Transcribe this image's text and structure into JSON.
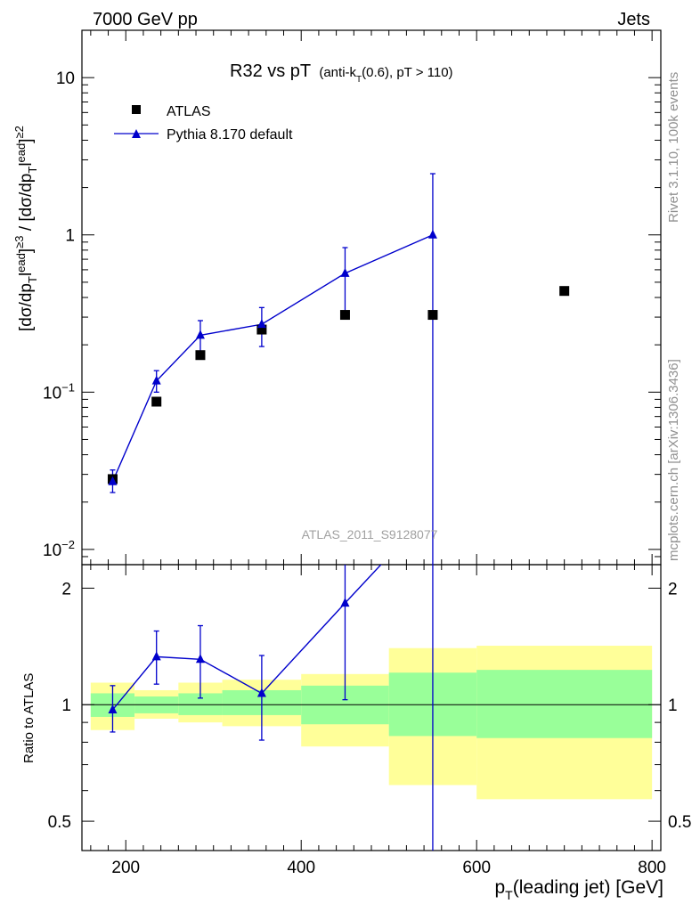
{
  "header": {
    "left": "7000 GeV pp",
    "right": "Jets"
  },
  "title": {
    "main": "R32 vs pT",
    "sub_prefix": "(anti-k",
    "sub_subscript": "T",
    "sub_suffix": "(0.6), pT > 110)"
  },
  "side_labels": {
    "rivet": "Rivet 3.1.10,  100k events",
    "mcplots": "mcplots.cern.ch [arXiv:1306.3436]"
  },
  "watermark": "ATLAS_2011_S9128077",
  "colors": {
    "data": "#000000",
    "mc": "#0000cc",
    "band_inner": "#99ff99",
    "band_outer": "#ffff99"
  },
  "chart_data": {
    "type": "scatter",
    "title": "R32 vs pT (anti-kT(0.6), pT > 110)",
    "xlabel": "p_T(leading jet) [GeV]",
    "ylabel": "[dσ/dp_Tlead]≥3 / [dσ/dp_Tlead]≥2",
    "ratio_ylabel": "Ratio to ATLAS",
    "x_scale": "linear",
    "y_scale": "log",
    "xlim": [
      150,
      810
    ],
    "ylim": [
      0.008,
      20
    ],
    "ratio_ylim": [
      0.42,
      2.3
    ],
    "ratio_y_scale": "log",
    "x_ticks": [
      200,
      400,
      600,
      800
    ],
    "y_ticks": [
      {
        "value": 0.01,
        "base": "10",
        "exp": "−2"
      },
      {
        "value": 0.1,
        "base": "10",
        "exp": "−1"
      },
      {
        "value": 1,
        "base": "1",
        "exp": ""
      },
      {
        "value": 10,
        "base": "10",
        "exp": ""
      }
    ],
    "ratio_ticks": [
      {
        "value": 0.5,
        "label": "0.5"
      },
      {
        "value": 1,
        "label": "1"
      },
      {
        "value": 2,
        "label": "2"
      }
    ],
    "legend": [
      "ATLAS",
      "Pythia 8.170 default"
    ],
    "legend_position": "top-left",
    "series": [
      {
        "name": "ATLAS",
        "marker": "square",
        "points": [
          {
            "x": 185,
            "y": 0.028
          },
          {
            "x": 235,
            "y": 0.087
          },
          {
            "x": 285,
            "y": 0.172
          },
          {
            "x": 355,
            "y": 0.25
          },
          {
            "x": 450,
            "y": 0.31
          },
          {
            "x": 550,
            "y": 0.31
          },
          {
            "x": 700,
            "y": 0.44
          }
        ]
      },
      {
        "name": "Pythia 8.170 default",
        "marker": "triangle",
        "points": [
          {
            "x": 185,
            "y": 0.027,
            "lo": 0.023,
            "hi": 0.032
          },
          {
            "x": 235,
            "y": 0.118,
            "lo": 0.1,
            "hi": 0.137
          },
          {
            "x": 285,
            "y": 0.23,
            "lo": 0.18,
            "hi": 0.285
          },
          {
            "x": 355,
            "y": 0.27,
            "lo": 0.195,
            "hi": 0.345
          },
          {
            "x": 450,
            "y": 0.57,
            "lo": 0.31,
            "hi": 0.83
          },
          {
            "x": 550,
            "y": 1.0,
            "lo": 0.004,
            "hi": 2.45
          }
        ]
      }
    ],
    "ratio_series": {
      "name": "Pythia 8.170 default",
      "points": [
        {
          "x": 185,
          "y": 0.97,
          "lo": 0.85,
          "hi": 1.12
        },
        {
          "x": 235,
          "y": 1.33,
          "lo": 1.13,
          "hi": 1.55
        },
        {
          "x": 285,
          "y": 1.31,
          "lo": 1.04,
          "hi": 1.6
        },
        {
          "x": 355,
          "y": 1.07,
          "lo": 0.81,
          "hi": 1.34
        },
        {
          "x": 450,
          "y": 1.83,
          "lo": 1.03,
          "hi": 3.0
        },
        {
          "x": 550,
          "y": 3.2,
          "lo": 0.3,
          "hi": 8.0
        }
      ]
    },
    "uncertainty_bands": [
      {
        "x0": 160,
        "x1": 210,
        "inner_lo": 0.93,
        "inner_hi": 1.07,
        "outer_lo": 0.86,
        "outer_hi": 1.14
      },
      {
        "x0": 210,
        "x1": 260,
        "inner_lo": 0.95,
        "inner_hi": 1.05,
        "outer_lo": 0.92,
        "outer_hi": 1.09
      },
      {
        "x0": 260,
        "x1": 310,
        "inner_lo": 0.94,
        "inner_hi": 1.07,
        "outer_lo": 0.9,
        "outer_hi": 1.14
      },
      {
        "x0": 310,
        "x1": 400,
        "inner_lo": 0.94,
        "inner_hi": 1.09,
        "outer_lo": 0.88,
        "outer_hi": 1.16
      },
      {
        "x0": 400,
        "x1": 500,
        "inner_lo": 0.89,
        "inner_hi": 1.12,
        "outer_lo": 0.78,
        "outer_hi": 1.2
      },
      {
        "x0": 500,
        "x1": 600,
        "inner_lo": 0.83,
        "inner_hi": 1.21,
        "outer_lo": 0.62,
        "outer_hi": 1.4
      },
      {
        "x0": 600,
        "x1": 800,
        "inner_lo": 0.82,
        "inner_hi": 1.23,
        "outer_lo": 0.57,
        "outer_hi": 1.42
      }
    ]
  }
}
